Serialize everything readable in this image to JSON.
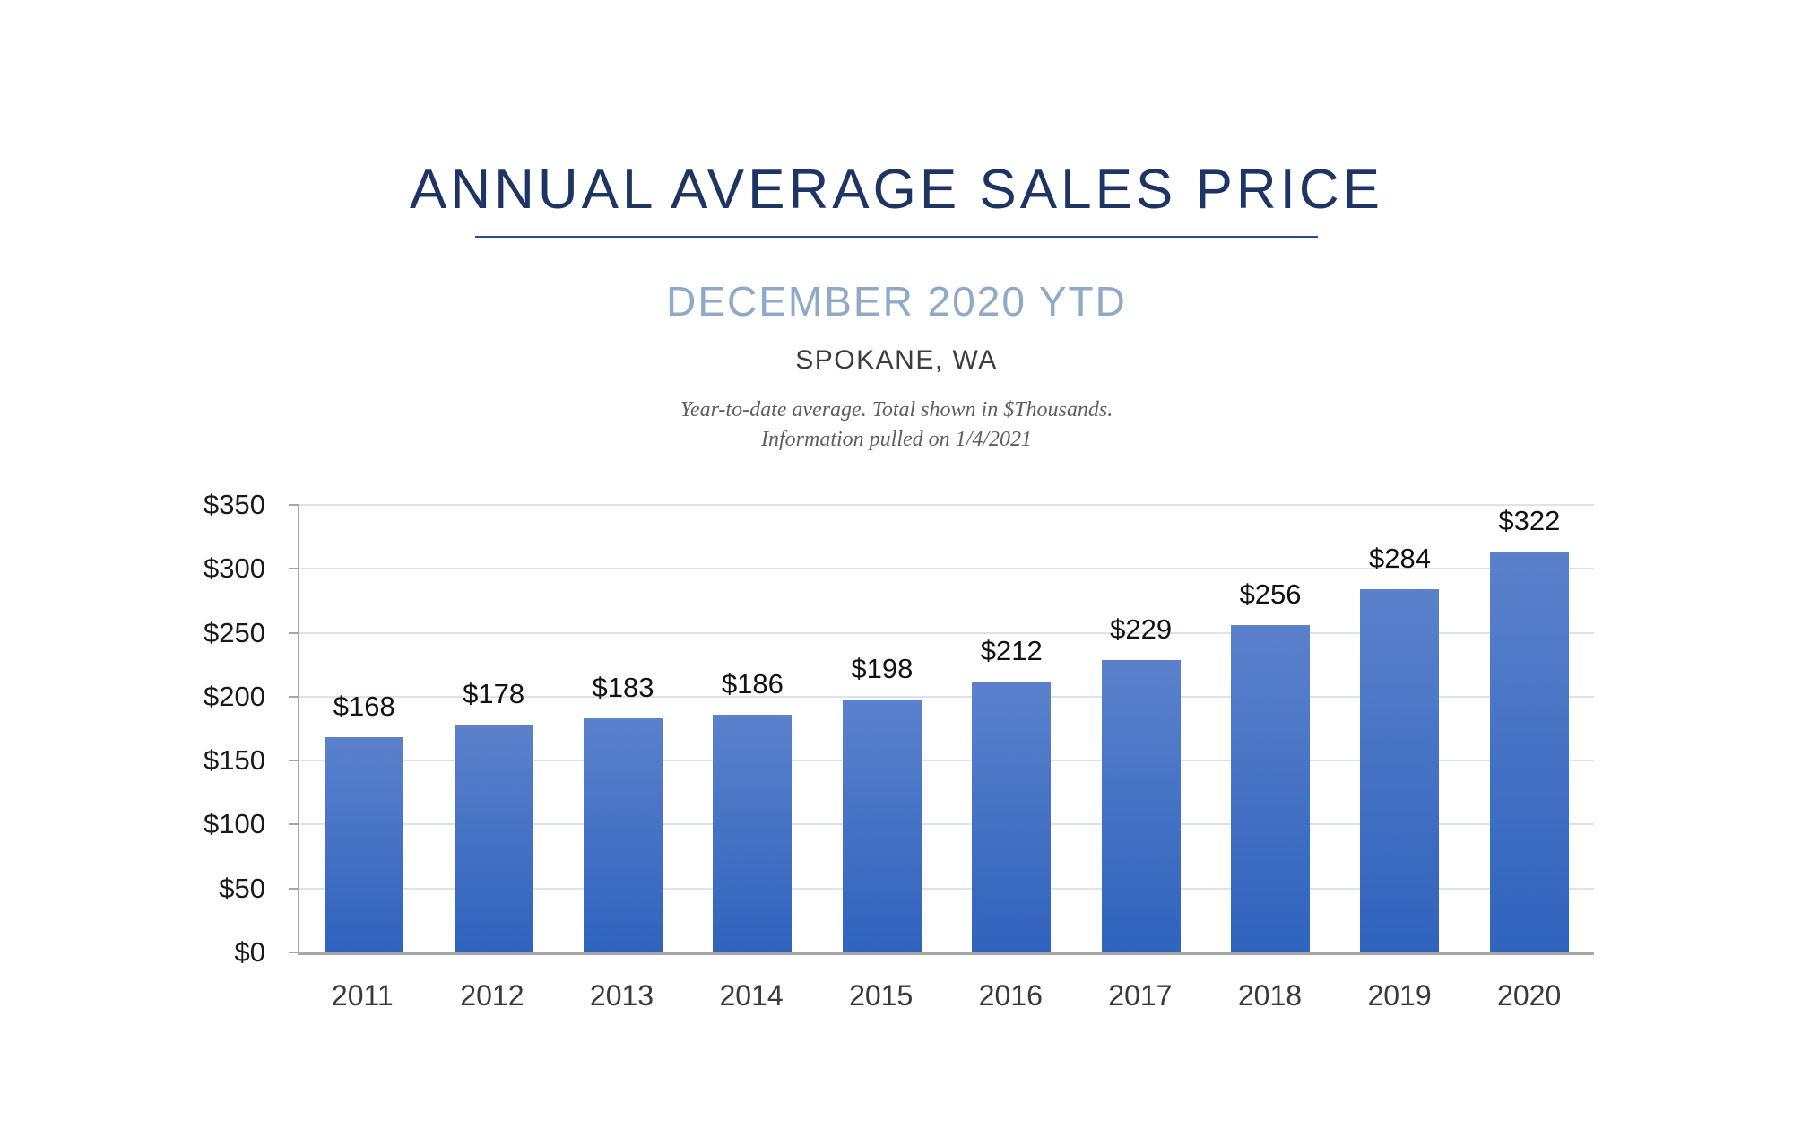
{
  "header": {
    "title": "ANNUAL AVERAGE SALES PRICE",
    "subtitle": "DECEMBER 2020 YTD",
    "location": "SPOKANE, WA",
    "note_line1": "Year-to-date average.  Total shown in $Thousands.",
    "note_line2": "Information pulled on 1/4/2021"
  },
  "colors": {
    "title": "#1e3464",
    "rule": "#2c4a96",
    "subtitle": "#8faac8",
    "gridline": "#dbe2f2",
    "axis": "#a6a6a6",
    "bar_gradient_top": "#5b81cc",
    "bar_gradient_bottom": "#2f63bd"
  },
  "chart_data": {
    "type": "bar",
    "title": "ANNUAL AVERAGE SALES PRICE",
    "subtitle": "DECEMBER 2020 YTD — SPOKANE, WA",
    "categories": [
      "2011",
      "2012",
      "2013",
      "2014",
      "2015",
      "2016",
      "2017",
      "2018",
      "2019",
      "2020"
    ],
    "values": [
      168,
      178,
      183,
      186,
      198,
      212,
      229,
      256,
      284,
      322
    ],
    "value_labels": [
      "$168",
      "$178",
      "$183",
      "$186",
      "$198",
      "$212",
      "$229",
      "$256",
      "$284",
      "$322"
    ],
    "units": "$Thousands",
    "xlabel": "",
    "ylabel": "",
    "ylim": [
      0,
      350
    ],
    "y_tick_values": [
      0,
      50,
      100,
      150,
      200,
      250,
      300,
      350
    ],
    "y_tick_labels": [
      "$0",
      "$50",
      "$100",
      "$150",
      "$200",
      "$250",
      "$300",
      "$350"
    ],
    "grid": true,
    "legend": false
  }
}
